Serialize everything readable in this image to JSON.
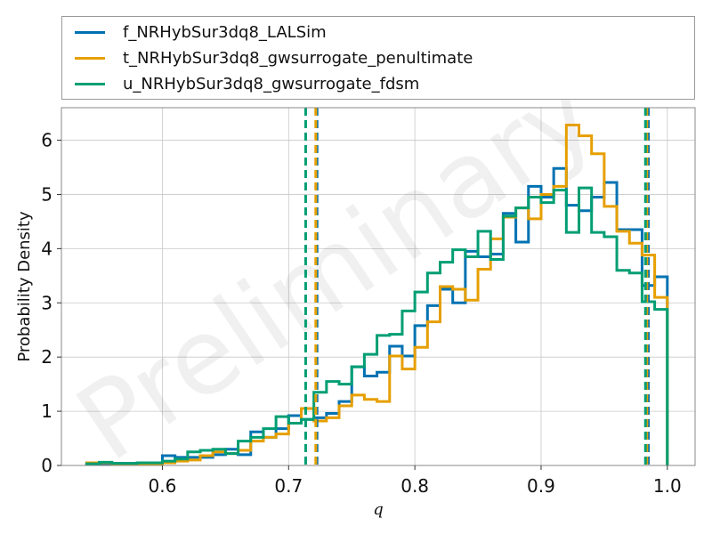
{
  "chart_data": {
    "type": "histogram",
    "xlabel": "q",
    "ylabel": "Probability Density",
    "watermark": "Preliminary",
    "xlim": [
      0.52,
      1.022
    ],
    "ylim": [
      0,
      6.6
    ],
    "xticks": [
      0.6,
      0.7,
      0.8,
      0.9,
      1.0
    ],
    "xtick_labels": [
      "0.6",
      "0.7",
      "0.8",
      "0.9",
      "1.0"
    ],
    "yticks": [
      0,
      1,
      2,
      3,
      4,
      5,
      6
    ],
    "ytick_labels": [
      "0",
      "1",
      "2",
      "3",
      "4",
      "5",
      "6"
    ],
    "grid": true,
    "legend_position": "above plot",
    "bin_edges": [
      0.54,
      0.55,
      0.56,
      0.57,
      0.58,
      0.59,
      0.6,
      0.61,
      0.62,
      0.63,
      0.64,
      0.65,
      0.66,
      0.67,
      0.68,
      0.69,
      0.7,
      0.71,
      0.72,
      0.73,
      0.74,
      0.75,
      0.76,
      0.77,
      0.78,
      0.79,
      0.8,
      0.81,
      0.82,
      0.83,
      0.84,
      0.85,
      0.86,
      0.87,
      0.88,
      0.89,
      0.9,
      0.91,
      0.92,
      0.93,
      0.94,
      0.95,
      0.96,
      0.97,
      0.98,
      0.99,
      1.0
    ],
    "series": [
      {
        "name": "f_NRHybSur3dq8_LALSim",
        "color": "#0072B2",
        "values": [
          0.02,
          0.03,
          0.04,
          0.04,
          0.03,
          0.04,
          0.18,
          0.15,
          0.15,
          0.15,
          0.2,
          0.3,
          0.2,
          0.62,
          0.52,
          0.68,
          0.92,
          0.85,
          0.88,
          0.96,
          1.18,
          1.82,
          1.65,
          1.72,
          2.2,
          2.02,
          2.58,
          2.95,
          3.25,
          3.0,
          3.95,
          3.85,
          3.9,
          4.65,
          4.12,
          5.15,
          4.95,
          5.48,
          4.8,
          4.7,
          4.95,
          5.22,
          4.35,
          4.35,
          3.32,
          3.48
        ]
      },
      {
        "name": "t_NRHybSur3dq8_gwsurrogate_penultimate",
        "color": "#E69F00",
        "values": [
          0.05,
          0.05,
          0.03,
          0.03,
          0.03,
          0.03,
          0.05,
          0.08,
          0.1,
          0.18,
          0.25,
          0.22,
          0.28,
          0.45,
          0.52,
          0.58,
          0.78,
          1.05,
          0.82,
          0.88,
          1.1,
          1.3,
          1.22,
          1.18,
          2.02,
          1.78,
          2.18,
          2.65,
          3.3,
          3.25,
          3.05,
          3.62,
          4.18,
          4.58,
          4.75,
          4.55,
          5.0,
          5.15,
          6.28,
          6.08,
          5.75,
          4.78,
          4.32,
          4.1,
          3.88,
          3.1
        ]
      },
      {
        "name": "u_NRHybSur3dq8_gwsurrogate_fdsm",
        "color": "#009E73",
        "values": [
          0.03,
          0.06,
          0.04,
          0.04,
          0.05,
          0.05,
          0.08,
          0.12,
          0.25,
          0.28,
          0.3,
          0.22,
          0.45,
          0.52,
          0.68,
          0.9,
          0.78,
          0.85,
          1.35,
          1.55,
          1.5,
          1.82,
          2.05,
          2.4,
          2.42,
          2.85,
          3.2,
          3.55,
          3.75,
          3.98,
          3.85,
          4.32,
          3.8,
          4.6,
          4.75,
          4.95,
          4.85,
          5.08,
          4.3,
          5.12,
          4.3,
          4.22,
          3.6,
          3.55,
          3.02,
          2.88
        ]
      }
    ],
    "vlines": [
      {
        "series": "f_NRHybSur3dq8_LALSim",
        "x": [
          0.7225,
          0.985
        ]
      },
      {
        "series": "t_NRHybSur3dq8_gwsurrogate_penultimate",
        "x": [
          0.7215,
          0.9838
        ]
      },
      {
        "series": "u_NRHybSur3dq8_gwsurrogate_fdsm",
        "x": [
          0.7135,
          0.9827
        ]
      }
    ]
  }
}
